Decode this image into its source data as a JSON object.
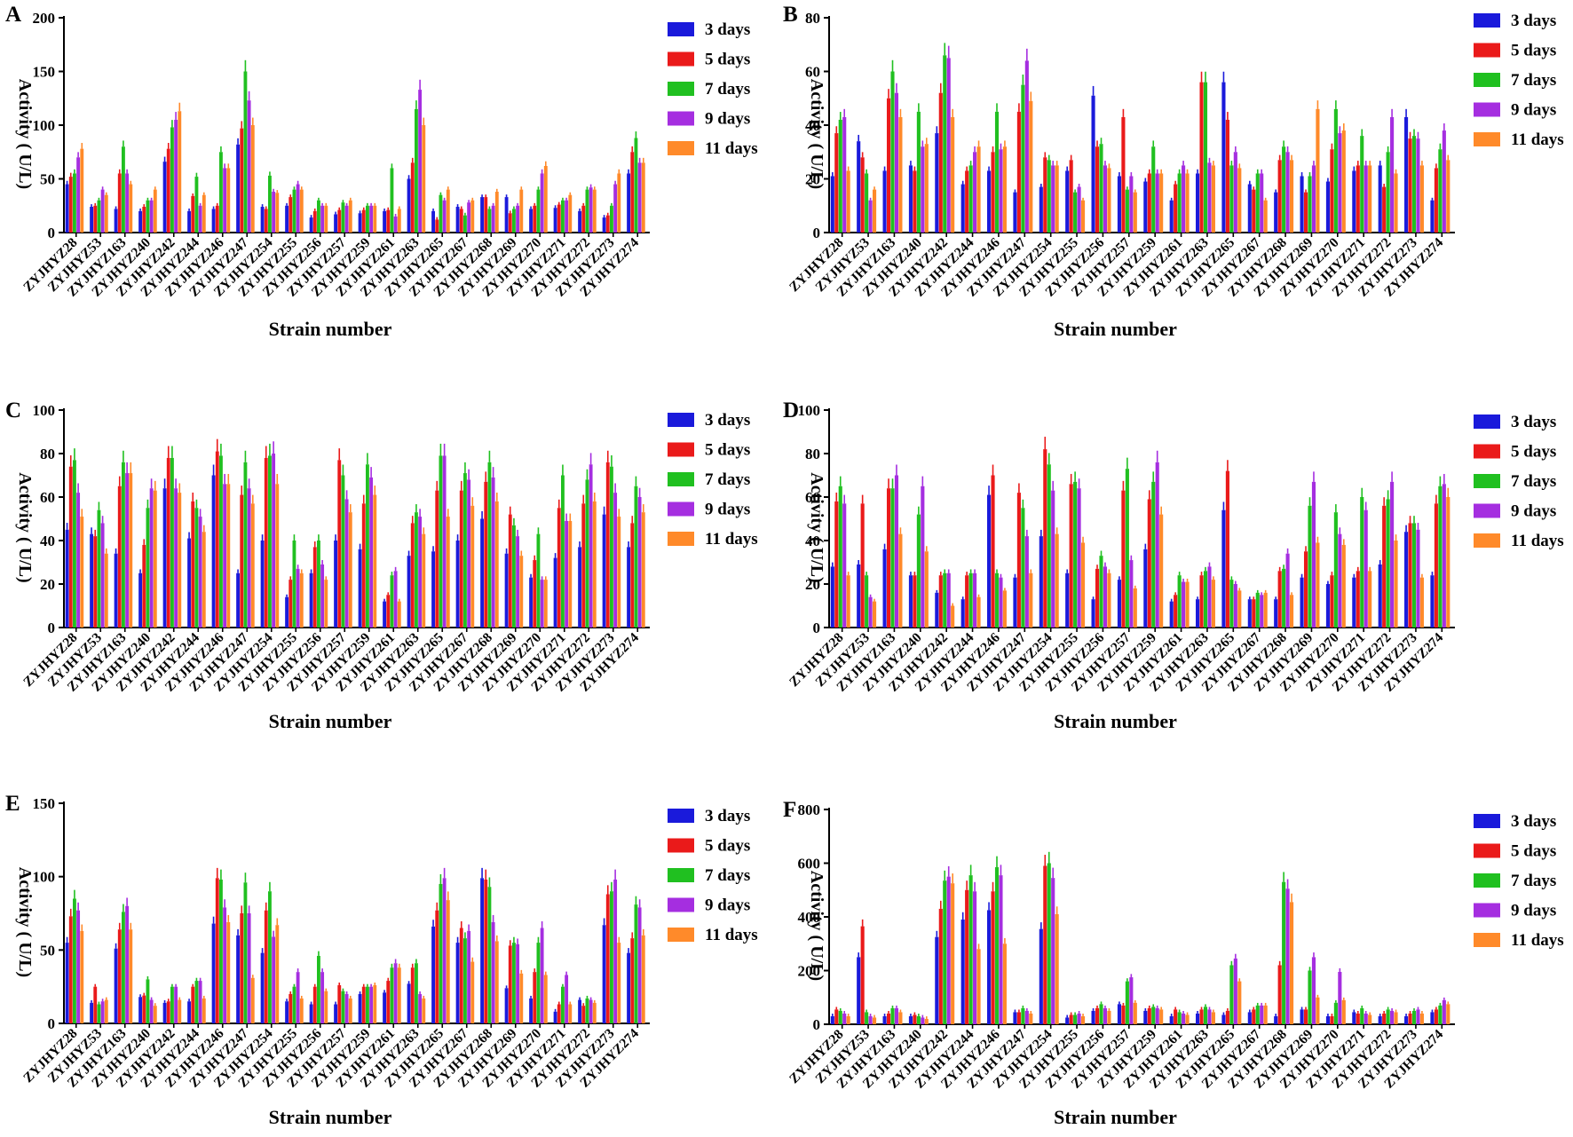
{
  "colors": {
    "3 days": "#1a1adb",
    "5 days": "#ea1a1a",
    "7 days": "#20c020",
    "9 days": "#a52ee0",
    "11 days": "#ff8a2a"
  },
  "chart_data": [
    {
      "panel": "A",
      "type": "bar",
      "ylabel": "Activity ( U/L)",
      "xlabel": "Strain number",
      "ylim": [
        0,
        200
      ],
      "yticks": [
        0,
        50,
        100,
        150,
        200
      ],
      "legend_position": "top-right",
      "categories": [
        "ZYJHYZ28",
        "ZYJHYZ53",
        "ZYJHYZ163",
        "ZYJHYZ240",
        "ZYJHYZ242",
        "ZYJHYZ244",
        "ZYJHYZ246",
        "ZYJHYZ247",
        "ZYJHYZ254",
        "ZYJHYZ255",
        "ZYJHYZ256",
        "ZYJHYZ257",
        "ZYJHYZ259",
        "ZYJHYZ261",
        "ZYJHYZ263",
        "ZYJHYZ265",
        "ZYJHYZ267",
        "ZYJHYZ268",
        "ZYJHYZ269",
        "ZYJHYZ270",
        "ZYJHYZ271",
        "ZYJHYZ272",
        "ZYJHYZ273",
        "ZYJHYZ274"
      ],
      "series": [
        {
          "name": "3 days",
          "values": [
            45,
            24,
            22,
            20,
            66,
            20,
            22,
            82,
            24,
            25,
            14,
            17,
            18,
            20,
            50,
            20,
            24,
            33,
            33,
            22,
            23,
            20,
            14,
            55
          ]
        },
        {
          "name": "5 days",
          "values": [
            52,
            25,
            55,
            24,
            78,
            34,
            25,
            97,
            22,
            33,
            20,
            21,
            21,
            21,
            65,
            12,
            22,
            33,
            18,
            25,
            26,
            25,
            16,
            75
          ]
        },
        {
          "name": "7 days",
          "values": [
            55,
            30,
            80,
            30,
            98,
            52,
            75,
            150,
            53,
            40,
            30,
            28,
            25,
            60,
            115,
            35,
            16,
            22,
            22,
            40,
            30,
            40,
            25,
            88
          ]
        },
        {
          "name": "9 days",
          "values": [
            70,
            40,
            55,
            30,
            105,
            25,
            60,
            123,
            38,
            45,
            25,
            25,
            25,
            15,
            133,
            30,
            28,
            25,
            25,
            55,
            30,
            42,
            45,
            65
          ]
        },
        {
          "name": "11 days",
          "values": [
            78,
            35,
            45,
            40,
            113,
            35,
            60,
            100,
            37,
            40,
            25,
            30,
            25,
            22,
            100,
            40,
            30,
            38,
            40,
            62,
            35,
            40,
            55,
            65
          ]
        }
      ]
    },
    {
      "panel": "B",
      "type": "bar",
      "ylabel": "Activity ( U/L)",
      "xlabel": "Strain number",
      "ylim": [
        0,
        80
      ],
      "yticks": [
        0,
        20,
        40,
        60,
        80
      ],
      "legend_position": "top-right",
      "categories": [
        "ZYJHYZ28",
        "ZYJHYZ53",
        "ZYJHYZ163",
        "ZYJHYZ240",
        "ZYJHYZ242",
        "ZYJHYZ244",
        "ZYJHYZ246",
        "ZYJHYZ247",
        "ZYJHYZ254",
        "ZYJHYZ255",
        "ZYJHYZ256",
        "ZYJHYZ257",
        "ZYJHYZ259",
        "ZYJHYZ261",
        "ZYJHYZ263",
        "ZYJHYZ265",
        "ZYJHYZ267",
        "ZYJHYZ268",
        "ZYJHYZ269",
        "ZYJHYZ270",
        "ZYJHYZ271",
        "ZYJHYZ272",
        "ZYJHYZ273",
        "ZYJHYZ274"
      ],
      "series": [
        {
          "name": "3 days",
          "values": [
            21,
            34,
            23,
            25,
            37,
            18,
            23,
            15,
            17,
            23,
            51,
            21,
            19,
            12,
            22,
            56,
            18,
            15,
            21,
            19,
            23,
            25,
            43,
            12
          ]
        },
        {
          "name": "5 days",
          "values": [
            37,
            28,
            50,
            23,
            52,
            23,
            30,
            45,
            28,
            27,
            32,
            43,
            22,
            18,
            56,
            42,
            16,
            27,
            15,
            31,
            25,
            17,
            35,
            24
          ]
        },
        {
          "name": "7 days",
          "values": [
            42,
            22,
            60,
            45,
            66,
            25,
            45,
            55,
            27,
            15,
            33,
            16,
            32,
            22,
            56,
            25,
            22,
            32,
            21,
            46,
            36,
            30,
            36,
            31
          ]
        },
        {
          "name": "9 days",
          "values": [
            43,
            12,
            52,
            32,
            65,
            30,
            31,
            64,
            25,
            17,
            25,
            21,
            22,
            25,
            26,
            30,
            22,
            30,
            25,
            37,
            25,
            43,
            35,
            38
          ]
        },
        {
          "name": "11 days",
          "values": [
            23,
            16,
            43,
            33,
            43,
            32,
            32,
            49,
            25,
            12,
            24,
            15,
            22,
            22,
            25,
            24,
            12,
            27,
            46,
            38,
            25,
            22,
            25,
            27
          ]
        }
      ]
    },
    {
      "panel": "C",
      "type": "bar",
      "ylabel": "Activity ( U/L)",
      "xlabel": "Strain number",
      "ylim": [
        0,
        100
      ],
      "yticks": [
        0,
        20,
        40,
        60,
        80,
        100
      ],
      "legend_position": "top-right",
      "categories": [
        "ZYJHYZ28",
        "ZYJHYZ53",
        "ZYJHYZ163",
        "ZYJHYZ240",
        "ZYJHYZ242",
        "ZYJHYZ244",
        "ZYJHYZ246",
        "ZYJHYZ247",
        "ZYJHYZ254",
        "ZYJHYZ255",
        "ZYJHYZ256",
        "ZYJHYZ257",
        "ZYJHYZ259",
        "ZYJHYZ261",
        "ZYJHYZ263",
        "ZYJHYZ265",
        "ZYJHYZ267",
        "ZYJHYZ268",
        "ZYJHYZ269",
        "ZYJHYZ270",
        "ZYJHYZ271",
        "ZYJHYZ272",
        "ZYJHYZ273",
        "ZYJHYZ274"
      ],
      "series": [
        {
          "name": "3 days",
          "values": [
            45,
            43,
            34,
            25,
            64,
            41,
            70,
            25,
            40,
            14,
            25,
            40,
            36,
            12,
            33,
            35,
            40,
            50,
            34,
            23,
            32,
            37,
            52,
            37
          ]
        },
        {
          "name": "5 days",
          "values": [
            74,
            42,
            65,
            38,
            78,
            58,
            81,
            61,
            78,
            22,
            37,
            77,
            57,
            15,
            48,
            63,
            63,
            67,
            52,
            31,
            55,
            57,
            76,
            48
          ]
        },
        {
          "name": "7 days",
          "values": [
            77,
            54,
            76,
            55,
            78,
            55,
            79,
            76,
            79,
            40,
            40,
            70,
            75,
            24,
            53,
            79,
            71,
            76,
            47,
            43,
            70,
            68,
            74,
            65
          ]
        },
        {
          "name": "9 days",
          "values": [
            62,
            48,
            71,
            64,
            64,
            51,
            66,
            64,
            80,
            27,
            29,
            59,
            69,
            26,
            51,
            79,
            68,
            69,
            42,
            22,
            49,
            75,
            62,
            60
          ]
        },
        {
          "name": "11 days",
          "values": [
            51,
            34,
            71,
            63,
            62,
            44,
            66,
            57,
            66,
            25,
            22,
            53,
            61,
            12,
            43,
            51,
            56,
            58,
            33,
            22,
            49,
            58,
            51,
            53
          ]
        }
      ]
    },
    {
      "panel": "D",
      "type": "bar",
      "ylabel": "Activity ( U/L)",
      "xlabel": "Strain number",
      "ylim": [
        0,
        100
      ],
      "yticks": [
        0,
        20,
        40,
        60,
        80,
        100
      ],
      "legend_position": "top-right",
      "categories": [
        "ZYJHYZ28",
        "ZYJHYZ53",
        "ZYJHYZ163",
        "ZYJHYZ240",
        "ZYJHYZ242",
        "ZYJHYZ244",
        "ZYJHYZ246",
        "ZYJHYZ247",
        "ZYJHYZ254",
        "ZYJHYZ255",
        "ZYJHYZ256",
        "ZYJHYZ257",
        "ZYJHYZ259",
        "ZYJHYZ261",
        "ZYJHYZ263",
        "ZYJHYZ265",
        "ZYJHYZ267",
        "ZYJHYZ268",
        "ZYJHYZ269",
        "ZYJHYZ270",
        "ZYJHYZ271",
        "ZYJHYZ272",
        "ZYJHYZ273",
        "ZYJHYZ274"
      ],
      "series": [
        {
          "name": "3 days",
          "values": [
            28,
            29,
            36,
            24,
            16,
            13,
            61,
            23,
            42,
            25,
            13,
            22,
            36,
            12,
            13,
            54,
            13,
            13,
            23,
            20,
            23,
            29,
            44,
            24
          ]
        },
        {
          "name": "5 days",
          "values": [
            58,
            57,
            64,
            24,
            24,
            24,
            70,
            62,
            82,
            66,
            27,
            63,
            59,
            15,
            24,
            72,
            13,
            26,
            35,
            24,
            26,
            56,
            48,
            57
          ]
        },
        {
          "name": "7 days",
          "values": [
            65,
            24,
            64,
            52,
            25,
            25,
            25,
            55,
            75,
            67,
            33,
            73,
            67,
            24,
            26,
            22,
            16,
            27,
            56,
            53,
            60,
            59,
            48,
            65
          ]
        },
        {
          "name": "9 days",
          "values": [
            57,
            14,
            70,
            65,
            25,
            25,
            23,
            42,
            63,
            64,
            28,
            31,
            76,
            21,
            28,
            20,
            15,
            34,
            67,
            43,
            54,
            67,
            45,
            66
          ]
        },
        {
          "name": "11 days",
          "values": [
            24,
            12,
            43,
            35,
            10,
            14,
            17,
            25,
            43,
            39,
            25,
            18,
            52,
            21,
            22,
            17,
            16,
            15,
            39,
            38,
            26,
            40,
            23,
            60
          ]
        }
      ]
    },
    {
      "panel": "E",
      "type": "bar",
      "ylabel": "Activity ( U/L)",
      "xlabel": "Strain number",
      "ylim": [
        0,
        150
      ],
      "yticks": [
        0,
        50,
        100,
        150
      ],
      "legend_position": "top-right",
      "categories": [
        "ZYJHYZ28",
        "ZYJHYZ53",
        "ZYJHYZ163",
        "ZYJHYZ240",
        "ZYJHYZ242",
        "ZYJHYZ244",
        "ZYJHYZ246",
        "ZYJHYZ247",
        "ZYJHYZ254",
        "ZYJHYZ255",
        "ZYJHYZ256",
        "ZYJHYZ257",
        "ZYJHYZ259",
        "ZYJHYZ261",
        "ZYJHYZ263",
        "ZYJHYZ265",
        "ZYJHYZ267",
        "ZYJHYZ268",
        "ZYJHYZ269",
        "ZYJHYZ270",
        "ZYJHYZ271",
        "ZYJHYZ272",
        "ZYJHYZ273",
        "ZYJHYZ274"
      ],
      "series": [
        {
          "name": "3 days",
          "values": [
            55,
            14,
            51,
            18,
            14,
            15,
            68,
            60,
            48,
            15,
            13,
            13,
            20,
            21,
            27,
            66,
            55,
            99,
            24,
            17,
            8,
            16,
            67,
            48
          ]
        },
        {
          "name": "5 days",
          "values": [
            73,
            25,
            64,
            19,
            15,
            25,
            99,
            75,
            77,
            20,
            25,
            26,
            25,
            29,
            38,
            77,
            65,
            98,
            53,
            35,
            13,
            12,
            88,
            58
          ]
        },
        {
          "name": "7 days",
          "values": [
            85,
            13,
            76,
            30,
            25,
            29,
            98,
            96,
            90,
            25,
            46,
            22,
            25,
            38,
            41,
            95,
            58,
            93,
            55,
            55,
            25,
            17,
            90,
            81
          ]
        },
        {
          "name": "9 days",
          "values": [
            77,
            15,
            80,
            16,
            25,
            29,
            79,
            75,
            59,
            35,
            35,
            20,
            25,
            41,
            20,
            99,
            63,
            69,
            54,
            65,
            33,
            16,
            98,
            79
          ]
        },
        {
          "name": "11 days",
          "values": [
            63,
            16,
            64,
            12,
            16,
            17,
            69,
            31,
            67,
            17,
            22,
            17,
            26,
            38,
            17,
            84,
            42,
            56,
            34,
            33,
            13,
            14,
            55,
            60
          ]
        }
      ]
    },
    {
      "panel": "F",
      "type": "bar",
      "ylabel": "Activity ( U/L)",
      "xlabel": "Strain number",
      "ylim": [
        0,
        800
      ],
      "yticks": [
        0,
        200,
        400,
        600,
        800
      ],
      "legend_position": "top-right",
      "categories": [
        "ZYJHYZ28",
        "ZYJHYZ53",
        "ZYJHYZ163",
        "ZYJHYZ240",
        "ZYJHYZ242",
        "ZYJHYZ244",
        "ZYJHYZ246",
        "ZYJHYZ247",
        "ZYJHYZ254",
        "ZYJHYZ255",
        "ZYJHYZ256",
        "ZYJHYZ257",
        "ZYJHYZ259",
        "ZYJHYZ261",
        "ZYJHYZ263",
        "ZYJHYZ265",
        "ZYJHYZ267",
        "ZYJHYZ268",
        "ZYJHYZ269",
        "ZYJHYZ270",
        "ZYJHYZ271",
        "ZYJHYZ272",
        "ZYJHYZ273",
        "ZYJHYZ274"
      ],
      "series": [
        {
          "name": "3 days",
          "values": [
            30,
            250,
            30,
            30,
            325,
            390,
            425,
            45,
            355,
            25,
            50,
            75,
            50,
            30,
            40,
            35,
            45,
            30,
            55,
            30,
            45,
            30,
            30,
            45
          ]
        },
        {
          "name": "5 days",
          "values": [
            55,
            365,
            40,
            35,
            430,
            500,
            495,
            45,
            590,
            35,
            60,
            70,
            60,
            55,
            55,
            50,
            55,
            220,
            55,
            30,
            40,
            40,
            40,
            55
          ]
        },
        {
          "name": "7 days",
          "values": [
            50,
            45,
            60,
            30,
            535,
            555,
            585,
            60,
            600,
            35,
            75,
            160,
            65,
            45,
            65,
            220,
            70,
            530,
            200,
            80,
            60,
            55,
            50,
            70
          ]
        },
        {
          "name": "9 days",
          "values": [
            40,
            30,
            60,
            25,
            550,
            495,
            555,
            50,
            545,
            40,
            60,
            175,
            60,
            40,
            55,
            245,
            70,
            505,
            250,
            195,
            40,
            50,
            55,
            90
          ]
        },
        {
          "name": "11 days",
          "values": [
            30,
            25,
            45,
            20,
            525,
            280,
            300,
            40,
            410,
            30,
            50,
            80,
            55,
            35,
            45,
            160,
            70,
            455,
            100,
            90,
            35,
            45,
            40,
            75
          ]
        }
      ]
    }
  ]
}
